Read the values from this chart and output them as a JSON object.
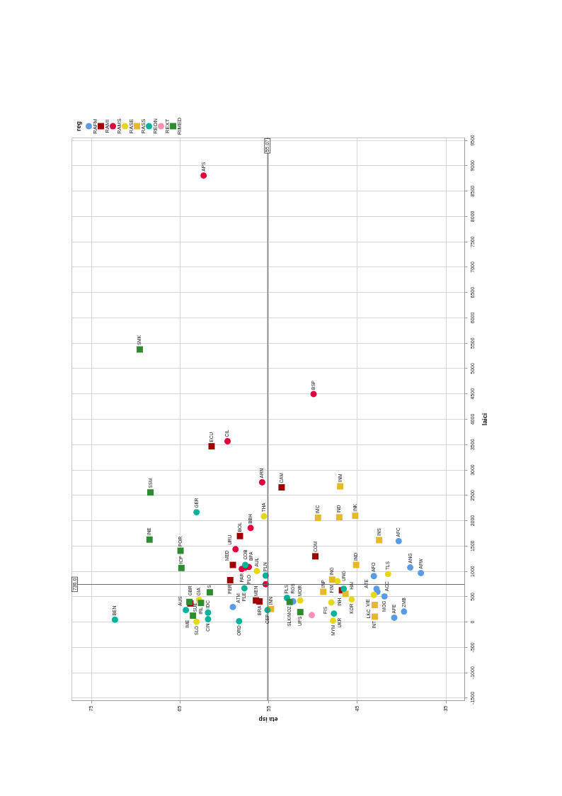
{
  "chart_data": {
    "type": "scatter",
    "xlabel": "eta isp",
    "ylabel": "laici",
    "legend_title": "reg",
    "legend": "top left",
    "grid": true,
    "xlim": [
      77.2,
      32.9
    ],
    "ylim": [
      -1550,
      9550
    ],
    "xticks": [
      75,
      65,
      55,
      45,
      35
    ],
    "yticks": [
      -1500,
      -1000,
      -500,
      0,
      500,
      1000,
      1500,
      2000,
      2500,
      3000,
      3500,
      4000,
      4500,
      5000,
      5500,
      6000,
      6500,
      7000,
      7500,
      8000,
      8500,
      9000,
      9500
    ],
    "series": [
      {
        "name": "RAFM",
        "color": "#5b9be6",
        "marker": "circle",
        "x": [
          59.0,
          52.2,
          40.3,
          39.0,
          37.8,
          43.1,
          42.8,
          42.7,
          41.9,
          40.8,
          39.7
        ],
        "values": [
          290,
          400,
          1590,
          1070,
          960,
          900,
          650,
          590,
          500,
          80,
          200
        ]
      },
      {
        "name": "RAMI",
        "color": "#a00000",
        "marker": "square",
        "x": [
          61.4,
          53.5,
          58.2,
          59.0,
          59.3,
          56.0,
          56.4,
          49.7,
          46.7,
          63.8
        ],
        "values": [
          3460,
          2650,
          1690,
          1120,
          820,
          400,
          420,
          1290,
          620,
          360
        ]
      },
      {
        "name": "RAMS",
        "color": "#e0003c",
        "marker": "circle",
        "x": [
          62.3,
          49.9,
          59.6,
          55.7,
          57.0,
          58.7,
          57.2,
          58.0,
          57.6,
          55.3
        ],
        "values": [
          8800,
          4490,
          3560,
          2750,
          1850,
          1430,
          1080,
          1040,
          1070,
          740
        ]
      },
      {
        "name": "RASE",
        "color": "#e6d817",
        "marker": "circle",
        "x": [
          55.5,
          56.3,
          62.8,
          63.1,
          47.2,
          45.6,
          47.9,
          47.7,
          41.5,
          43.1,
          51.4
        ],
        "values": [
          2080,
          1000,
          430,
          0,
          800,
          440,
          380,
          20,
          940,
          530,
          420
        ]
      },
      {
        "name": "RASS",
        "color": "#e6b82a",
        "marker": "square",
        "x": [
          46.9,
          49.4,
          47.0,
          45.2,
          42.5,
          45.1,
          47.8,
          48.8,
          46.3,
          54.7,
          43.0,
          43.0
        ],
        "values": [
          2670,
          2050,
          2060,
          2090,
          1610,
          1120,
          830,
          590,
          550,
          250,
          330,
          100
        ]
      },
      {
        "name": "REON",
        "color": "#00b39b",
        "marker": "circle",
        "x": [
          63.1,
          57.6,
          55.3,
          57.7,
          64.3,
          61.8,
          61.8,
          72.3,
          58.3,
          55.1,
          52.9,
          46.5,
          47.6
        ],
        "values": [
          2160,
          1120,
          910,
          660,
          230,
          180,
          50,
          40,
          10,
          230,
          470,
          650,
          160
        ]
      },
      {
        "name": "REXT",
        "color": "#ff8fb8",
        "marker": "circle",
        "x": [
          50.1
        ],
        "values": [
          130
        ]
      },
      {
        "name": "RIMED",
        "color": "#2e8b2e",
        "marker": "square",
        "x": [
          69.5,
          68.3,
          68.4,
          64.9,
          64.8,
          61.6,
          63.9,
          62.6,
          63.5,
          52.6,
          51.4
        ],
        "values": [
          5370,
          2550,
          1620,
          1400,
          1060,
          580,
          390,
          370,
          120,
          390,
          190
        ]
      }
    ],
    "ref_lines": [
      {
        "axis": "x",
        "value": 55.07,
        "label": "55.07"
      },
      {
        "axis": "y",
        "value": 736,
        "label": "736.0"
      }
    ],
    "annotations": [
      {
        "text": "ATM",
        "x": 59.0,
        "y": 290
      },
      {
        "text": "RGS",
        "x": 52.2,
        "y": 400
      },
      {
        "text": "AFC",
        "x": 40.3,
        "y": 1590
      },
      {
        "text": "ANG",
        "x": 39.0,
        "y": 1070
      },
      {
        "text": "AFW",
        "x": 37.8,
        "y": 960
      },
      {
        "text": "AFO",
        "x": 43.1,
        "y": 900
      },
      {
        "text": "ATE",
        "x": 42.8,
        "y": 650
      },
      {
        "text": "ACC",
        "x": 42.7,
        "y": 590
      },
      {
        "text": "MOG",
        "x": 41.9,
        "y": 500
      },
      {
        "text": "AFE",
        "x": 40.8,
        "y": 80
      },
      {
        "text": "ZMB",
        "x": 39.7,
        "y": 200
      },
      {
        "text": "ECU",
        "x": 61.4,
        "y": 3460
      },
      {
        "text": "CAM",
        "x": 53.5,
        "y": 2650
      },
      {
        "text": "BOL",
        "x": 58.2,
        "y": 1690
      },
      {
        "text": "MED",
        "x": 59.0,
        "y": 1120
      },
      {
        "text": "PER",
        "x": 59.3,
        "y": 820
      },
      {
        "text": "BRA",
        "x": 56.0,
        "y": 400
      },
      {
        "text": "MEN",
        "x": 56.4,
        "y": 420
      },
      {
        "text": "COM",
        "x": 49.7,
        "y": 1290
      },
      {
        "text": "HAI",
        "x": 46.7,
        "y": 620
      },
      {
        "text": "GBR",
        "x": 63.8,
        "y": 360
      },
      {
        "text": "APS",
        "x": 62.3,
        "y": 8800
      },
      {
        "text": "BSP",
        "x": 49.9,
        "y": 4490
      },
      {
        "text": "CIL",
        "x": 59.6,
        "y": 3560
      },
      {
        "text": "ARN",
        "x": 55.7,
        "y": 2750
      },
      {
        "text": "BBH",
        "x": 57.0,
        "y": 1850
      },
      {
        "text": "URU",
        "x": 58.7,
        "y": 1430
      },
      {
        "text": "PLO",
        "x": 57.2,
        "y": 1080
      },
      {
        "text": "PAR",
        "x": 58.0,
        "y": 1040
      },
      {
        "text": "COB",
        "x": 57.6,
        "y": 1070
      },
      {
        "text": "THA",
        "x": 55.5,
        "y": 2080
      },
      {
        "text": "AUL",
        "x": 56.3,
        "y": 1000
      },
      {
        "text": "GIA",
        "x": 62.8,
        "y": 430
      },
      {
        "text": "SLO",
        "x": 63.1,
        "y": 0
      },
      {
        "text": "FIN",
        "x": 47.2,
        "y": 800
      },
      {
        "text": "KOR",
        "x": 45.6,
        "y": 440
      },
      {
        "text": "FIS",
        "x": 47.9,
        "y": 380
      },
      {
        "text": "MYM",
        "x": 47.7,
        "y": 20
      },
      {
        "text": "TLS",
        "x": 41.5,
        "y": 940
      },
      {
        "text": "VIE",
        "x": 43.1,
        "y": 530
      },
      {
        "text": "MOR",
        "x": 51.4,
        "y": 420
      },
      {
        "text": "INM",
        "x": 46.9,
        "y": 2670
      },
      {
        "text": "IMC",
        "x": 49.4,
        "y": 2050
      },
      {
        "text": "IND",
        "x": 47.0,
        "y": 2060
      },
      {
        "text": "INK",
        "x": 45.2,
        "y": 2090
      },
      {
        "text": "INS",
        "x": 42.5,
        "y": 1610
      },
      {
        "text": "IND",
        "x": 45.1,
        "y": 1120
      },
      {
        "text": "ING",
        "x": 47.8,
        "y": 830
      },
      {
        "text": "INP",
        "x": 48.8,
        "y": 590
      },
      {
        "text": "INH",
        "x": 46.3,
        "y": 550
      },
      {
        "text": "INN",
        "x": 54.7,
        "y": 250
      },
      {
        "text": "LKC",
        "x": 43.0,
        "y": 330
      },
      {
        "text": "INT",
        "x": 43.0,
        "y": 100
      },
      {
        "text": "GER",
        "x": 63.1,
        "y": 2160
      },
      {
        "text": "BPA",
        "x": 57.6,
        "y": 1120
      },
      {
        "text": "PLN",
        "x": 55.3,
        "y": 910
      },
      {
        "text": "PLE",
        "x": 57.7,
        "y": 660
      },
      {
        "text": "AUS",
        "x": 64.3,
        "y": 230
      },
      {
        "text": "IDC",
        "x": 61.8,
        "y": 180
      },
      {
        "text": "CIN",
        "x": 61.8,
        "y": 50
      },
      {
        "text": "BEN",
        "x": 72.3,
        "y": 40
      },
      {
        "text": "ORD",
        "x": 58.3,
        "y": 10
      },
      {
        "text": "CEP",
        "x": 55.1,
        "y": 230
      },
      {
        "text": "PLS",
        "x": 52.9,
        "y": 470
      },
      {
        "text": "UNG",
        "x": 46.5,
        "y": 650
      },
      {
        "text": "UKR",
        "x": 47.6,
        "y": 160
      },
      {
        "text": "SMK",
        "x": 69.5,
        "y": 5370
      },
      {
        "text": "SSM",
        "x": 68.3,
        "y": 2550
      },
      {
        "text": "INE",
        "x": 68.4,
        "y": 1620
      },
      {
        "text": "POR",
        "x": 64.9,
        "y": 1400
      },
      {
        "text": "ICP",
        "x": 64.8,
        "y": 1060
      },
      {
        "text": "S",
        "x": 61.6,
        "y": 580
      },
      {
        "text": "SUE",
        "x": 63.9,
        "y": 390
      },
      {
        "text": "IRL",
        "x": 62.6,
        "y": 370
      },
      {
        "text": "IME",
        "x": 63.5,
        "y": 120
      },
      {
        "text": "SLK/MOZ",
        "x": 52.6,
        "y": 390
      },
      {
        "text": "UPS",
        "x": 51.4,
        "y": 190
      }
    ]
  }
}
